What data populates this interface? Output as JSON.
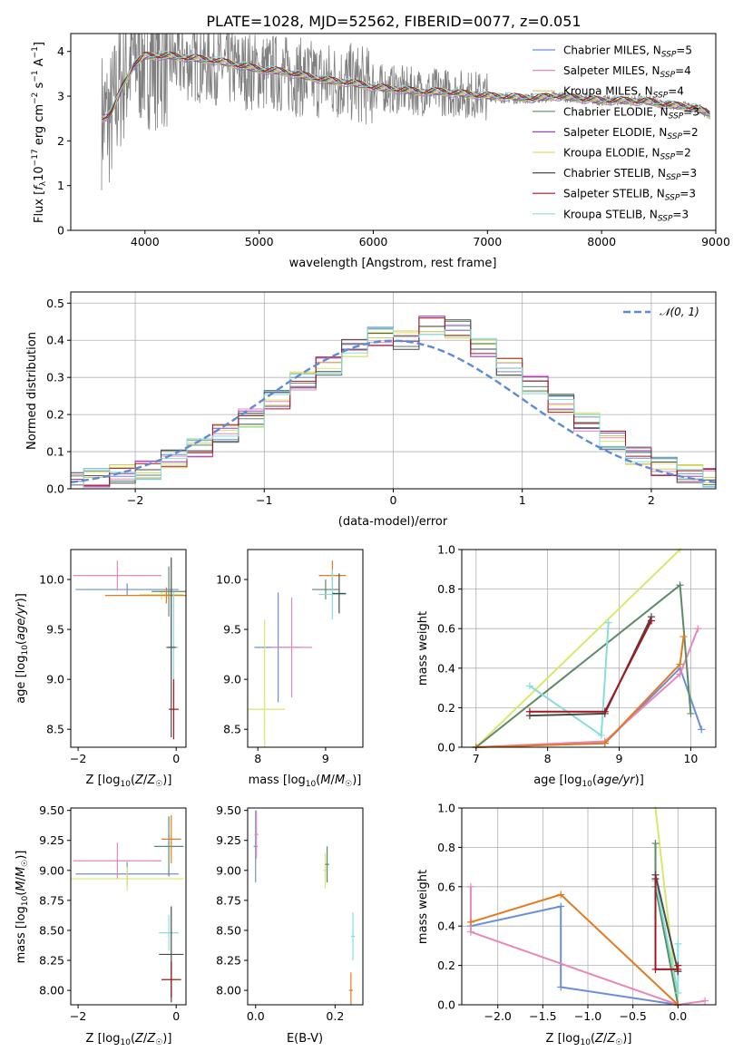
{
  "figure_title": "PLATE=1028, MJD=52562, FIBERID=0077, z=0.051",
  "colors": {
    "grid": "#b0b0b0",
    "data": "#808080",
    "normal": "#5e8ad6",
    "series": [
      "#6b8fd6",
      "#e887b9",
      "#c9cf5b",
      "#5b8a68",
      "#9c3fbf",
      "#dfe06a",
      "#4a4a4a",
      "#a3171d",
      "#86dedb"
    ],
    "age_mass": [
      "#6b8fd6",
      "#e887b9",
      "#d9e86a",
      "#5b8a68",
      "#e47a20",
      "#86dedb",
      "#4a4a4a",
      "#a3171d"
    ]
  },
  "chart_data": [
    {
      "id": "spectrum",
      "type": "line",
      "title": "PLATE=1028, MJD=52562, FIBERID=0077, z=0.051",
      "xlabel": "wavelength [Angstrom, rest frame]",
      "ylabel": "Flux [f_λ 10^-17 erg cm^-2 s^-1 A^-1]",
      "xlim": [
        3350,
        9000
      ],
      "ylim": [
        0,
        4.4
      ],
      "xticks": [
        "4000",
        "5000",
        "6000",
        "7000",
        "8000",
        "9000"
      ],
      "yticks": [
        "0",
        "1",
        "2",
        "3",
        "4"
      ],
      "data_spectrum": {
        "x": [
          3620,
          3700,
          3800,
          3900,
          4000,
          4200,
          4400,
          4600,
          4800,
          5000,
          5200,
          5400,
          5600,
          5800,
          6000,
          6200,
          6400,
          6600,
          6800,
          7000,
          7200,
          7400,
          7600,
          7800,
          8000,
          8200,
          8400,
          8600,
          8800,
          8950
        ],
        "y": [
          2.5,
          2.5,
          3.4,
          3.9,
          3.85,
          3.8,
          3.75,
          3.7,
          3.6,
          3.55,
          3.5,
          3.4,
          3.35,
          3.3,
          3.2,
          3.15,
          3.1,
          3.1,
          3.05,
          3.0,
          2.95,
          2.95,
          3.0,
          2.95,
          2.9,
          2.9,
          2.9,
          2.8,
          2.75,
          2.6
        ]
      },
      "model_continuum": {
        "x": [
          3620,
          3700,
          3800,
          3900,
          4000,
          4200,
          4400,
          4600,
          4800,
          5000,
          5200,
          5400,
          5600,
          5800,
          6000,
          6200,
          6400,
          6600,
          6800,
          7000,
          7200,
          7400,
          7600,
          7800,
          8000,
          8200,
          8400,
          8600,
          8800,
          8950
        ],
        "y": [
          2.5,
          2.6,
          3.2,
          3.7,
          3.9,
          3.9,
          3.85,
          3.8,
          3.7,
          3.6,
          3.55,
          3.45,
          3.35,
          3.3,
          3.2,
          3.15,
          3.1,
          3.1,
          3.05,
          3.0,
          2.98,
          2.95,
          3.0,
          2.95,
          2.9,
          2.9,
          2.88,
          2.8,
          2.75,
          2.6
        ]
      },
      "legend": [
        {
          "name": "Chabrier MILES, N_SSP=5"
        },
        {
          "name": "Salpeter MILES, N_SSP=4"
        },
        {
          "name": "Kroupa MILES, N_SSP=4"
        },
        {
          "name": "Chabrier ELODIE, N_SSP=3"
        },
        {
          "name": "Salpeter ELODIE, N_SSP=2"
        },
        {
          "name": "Kroupa ELODIE, N_SSP=2"
        },
        {
          "name": "Chabrier STELIB, N_SSP=3"
        },
        {
          "name": "Salpeter STELIB, N_SSP=3"
        },
        {
          "name": "Kroupa STELIB, N_SSP=3"
        }
      ],
      "legend_position": "right"
    },
    {
      "id": "residuals",
      "type": "line",
      "xlabel": "(data-model)/error",
      "ylabel": "Normed distribution",
      "xlim": [
        -2.5,
        2.5
      ],
      "ylim": [
        0,
        0.53
      ],
      "xticks": [
        "−2",
        "−1",
        "0",
        "1",
        "2"
      ],
      "yticks": [
        "0.0",
        "0.1",
        "0.2",
        "0.3",
        "0.4",
        "0.5"
      ],
      "grid": true,
      "legend": [
        "𝒩(0, 1)"
      ],
      "legend_position": "top-right",
      "bin_edges": [
        -2.6,
        -2.4,
        -2.2,
        -2.0,
        -1.8,
        -1.6,
        -1.4,
        -1.2,
        -1.0,
        -0.8,
        -0.6,
        -0.4,
        -0.2,
        0.0,
        0.2,
        0.4,
        0.6,
        0.8,
        1.0,
        1.2,
        1.4,
        1.6,
        1.8,
        2.0,
        2.2,
        2.4,
        2.6
      ],
      "hist_mean": [
        0.02,
        0.03,
        0.04,
        0.05,
        0.08,
        0.11,
        0.15,
        0.19,
        0.24,
        0.29,
        0.33,
        0.38,
        0.41,
        0.4,
        0.44,
        0.43,
        0.38,
        0.33,
        0.28,
        0.23,
        0.18,
        0.13,
        0.09,
        0.06,
        0.04,
        0.03
      ],
      "normal_curve": {
        "mu": 0,
        "sigma": 1
      }
    },
    {
      "id": "age_vs_Z",
      "type": "scatter",
      "xlabel": "Z [log10(Z/Z☉)]",
      "ylabel": "age  [log10(age/yr)]",
      "xlim": [
        -2.15,
        0.2
      ],
      "ylim": [
        8.32,
        10.3
      ],
      "xticks": [
        "−2",
        "0"
      ],
      "yticks": [
        "8.5",
        "9.0",
        "9.5",
        "10.0"
      ],
      "points": [
        {
          "x": -1.0,
          "y": 9.9,
          "xerr": 1.05,
          "yerr": 0.06
        },
        {
          "x": -1.2,
          "y": 10.04,
          "xerr": 0.9,
          "yerr": 0.15
        },
        {
          "x": -0.3,
          "y": 9.85,
          "xerr": 0.45,
          "yerr": 0.05
        },
        {
          "x": -0.15,
          "y": 9.88,
          "xerr": 0.35,
          "yerr": 0.25
        },
        {
          "x": -0.2,
          "y": 9.84,
          "xerr": 1.25,
          "yerr": 0.08
        },
        {
          "x": -0.05,
          "y": 9.32,
          "xerr": 0.1,
          "yerr": 0.55
        },
        {
          "x": -0.1,
          "y": 9.32,
          "xerr": 0.1,
          "yerr": 0.9
        },
        {
          "x": -0.05,
          "y": 8.7,
          "xerr": 0.1,
          "yerr": 0.3
        }
      ]
    },
    {
      "id": "age_vs_mass",
      "type": "scatter",
      "xlabel": "mass [log10(M/M☉)]",
      "ylabel": "",
      "xlim": [
        7.85,
        9.55
      ],
      "ylim": [
        8.32,
        10.3
      ],
      "xticks": [
        "8",
        "9"
      ],
      "yticks": [
        "8.5",
        "9.0",
        "9.5",
        "10.0"
      ],
      "points": [
        {
          "x": 8.3,
          "y": 9.32,
          "xerr": 0.35,
          "yerr": 0.55
        },
        {
          "x": 8.5,
          "y": 9.32,
          "xerr": 0.3,
          "yerr": 0.5
        },
        {
          "x": 8.1,
          "y": 8.7,
          "xerr": 0.3,
          "yerr": 0.9
        },
        {
          "x": 9.0,
          "y": 9.9,
          "xerr": 0.2,
          "yerr": 0.1
        },
        {
          "x": 9.1,
          "y": 10.04,
          "xerr": 0.2,
          "yerr": 0.15
        },
        {
          "x": 9.1,
          "y": 9.85,
          "xerr": 0.2,
          "yerr": 0.25
        },
        {
          "x": 9.2,
          "y": 9.86,
          "xerr": 0.1,
          "yerr": 0.2
        }
      ]
    },
    {
      "id": "massweight_vs_age",
      "type": "line",
      "xlabel": "age  [log10(age/yr)]",
      "ylabel": "mass weight",
      "xlim": [
        6.8,
        10.35
      ],
      "ylim": [
        0,
        1.0
      ],
      "xticks": [
        "7",
        "8",
        "9",
        "10"
      ],
      "yticks": [
        "0.0",
        "0.2",
        "0.4",
        "0.6",
        "0.8",
        "1.0"
      ],
      "grid": true,
      "series": [
        {
          "x": [
            7.0,
            8.8,
            9.85,
            10.15
          ],
          "y": [
            0.0,
            0.02,
            0.4,
            0.09
          ]
        },
        {
          "x": [
            7.0,
            8.8,
            9.85,
            10.1
          ],
          "y": [
            0.0,
            0.03,
            0.37,
            0.6
          ]
        },
        {
          "x": [
            7.0,
            9.85
          ],
          "y": [
            0.0,
            1.0
          ]
        },
        {
          "x": [
            7.0,
            9.85,
            10.0
          ],
          "y": [
            0.0,
            0.82,
            0.17
          ]
        },
        {
          "x": [
            7.0,
            8.8,
            9.85,
            9.9
          ],
          "y": [
            0.0,
            0.02,
            0.42,
            0.56
          ]
        },
        {
          "x": [
            7.75,
            8.75,
            8.85
          ],
          "y": [
            0.31,
            0.06,
            0.63
          ]
        },
        {
          "x": [
            7.75,
            8.8,
            9.45
          ],
          "y": [
            0.16,
            0.17,
            0.66
          ]
        },
        {
          "x": [
            7.75,
            8.8,
            9.45
          ],
          "y": [
            0.18,
            0.18,
            0.64
          ]
        }
      ]
    },
    {
      "id": "mass_vs_Z",
      "type": "scatter",
      "xlabel": "Z [log10(Z/Z☉)]",
      "ylabel": "mass [log10(M/M☉)]",
      "xlim": [
        -2.15,
        0.2
      ],
      "ylim": [
        7.88,
        9.52
      ],
      "xticks": [
        "−2",
        "0"
      ],
      "yticks": [
        "8.00",
        "8.25",
        "8.50",
        "8.75",
        "9.00",
        "9.25",
        "9.50"
      ],
      "points": [
        {
          "x": -1.0,
          "y": 8.97,
          "xerr": 1.05,
          "yerr": 0.1
        },
        {
          "x": -1.2,
          "y": 9.08,
          "xerr": 0.9,
          "yerr": 0.15
        },
        {
          "x": -1.0,
          "y": 8.93,
          "xerr": 1.15,
          "yerr": 0.1
        },
        {
          "x": -0.15,
          "y": 9.2,
          "xerr": 0.3,
          "yerr": 0.25
        },
        {
          "x": -0.1,
          "y": 9.26,
          "xerr": 0.2,
          "yerr": 0.2
        },
        {
          "x": -0.15,
          "y": 8.48,
          "xerr": 0.2,
          "yerr": 0.15
        },
        {
          "x": -0.1,
          "y": 8.3,
          "xerr": 0.25,
          "yerr": 0.4
        },
        {
          "x": -0.1,
          "y": 8.09,
          "xerr": 0.2,
          "yerr": 0.15
        }
      ]
    },
    {
      "id": "mass_vs_ebv",
      "type": "scatter",
      "xlabel": "E(B-V)",
      "ylabel": "",
      "xlim": [
        -0.02,
        0.27
      ],
      "ylim": [
        7.88,
        9.52
      ],
      "xticks": [
        "0.0",
        "0.2"
      ],
      "yticks": [
        "8.00",
        "8.25",
        "8.50",
        "8.75",
        "9.00",
        "9.25",
        "9.50"
      ],
      "points": [
        {
          "x": 0.0,
          "y": 9.2,
          "xerr": 0.005,
          "yerr": 0.3
        },
        {
          "x": 0.002,
          "y": 9.3,
          "xerr": 0.005,
          "yerr": 0.2
        },
        {
          "x": 0.175,
          "y": 9.0,
          "xerr": 0.005,
          "yerr": 0.15
        },
        {
          "x": 0.18,
          "y": 9.05,
          "xerr": 0.005,
          "yerr": 0.15
        },
        {
          "x": 0.24,
          "y": 8.0,
          "xerr": 0.005,
          "yerr": 0.15
        },
        {
          "x": 0.245,
          "y": 8.45,
          "xerr": 0.005,
          "yerr": 0.2
        }
      ]
    },
    {
      "id": "massweight_vs_Z",
      "type": "line",
      "xlabel": "Z [log10(Z/Z☉)]",
      "ylabel": "mass weight",
      "xlim": [
        -2.4,
        0.42
      ],
      "ylim": [
        0,
        1.0
      ],
      "xticks": [
        "−2.0",
        "−1.5",
        "−1.0",
        "−0.5",
        "0.0"
      ],
      "yticks": [
        "0.0",
        "0.2",
        "0.4",
        "0.6",
        "0.8",
        "1.0"
      ],
      "grid": true,
      "series": [
        {
          "x": [
            -2.3,
            -1.3,
            -1.3,
            0.0
          ],
          "y": [
            0.4,
            0.5,
            0.09,
            0.0
          ]
        },
        {
          "x": [
            -2.3,
            -2.3,
            0.0,
            0.3
          ],
          "y": [
            0.6,
            0.37,
            0.0,
            0.02
          ]
        },
        {
          "x": [
            -0.25,
            0.0
          ],
          "y": [
            1.0,
            0.0
          ]
        },
        {
          "x": [
            -0.25,
            -0.25,
            0.0
          ],
          "y": [
            0.82,
            0.6,
            0.0
          ]
        },
        {
          "x": [
            -2.3,
            -1.3,
            0.0
          ],
          "y": [
            0.42,
            0.56,
            0.0
          ]
        },
        {
          "x": [
            -0.25,
            0.0,
            0.0
          ],
          "y": [
            0.63,
            0.06,
            0.31
          ]
        },
        {
          "x": [
            -0.25,
            0.0,
            0.0
          ],
          "y": [
            0.66,
            0.17,
            0.17
          ]
        },
        {
          "x": [
            -0.25,
            -0.25,
            0.0,
            0.0
          ],
          "y": [
            0.64,
            0.18,
            0.18,
            0.2
          ]
        }
      ]
    }
  ]
}
